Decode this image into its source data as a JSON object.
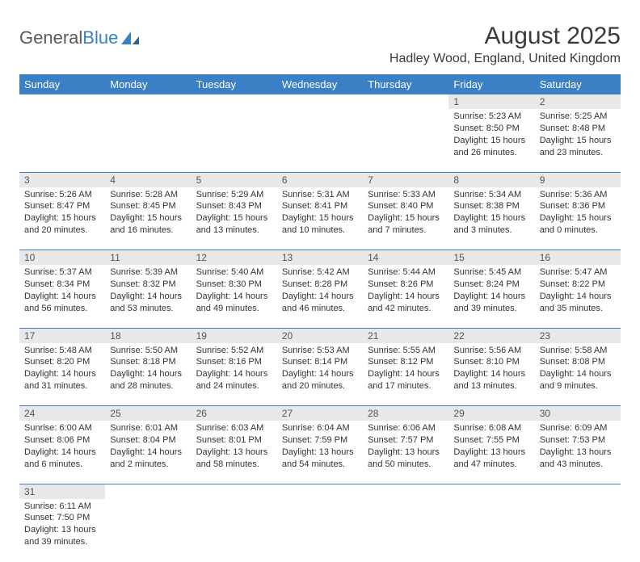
{
  "logo": {
    "text1": "General",
    "text2": "Blue"
  },
  "title": "August 2025",
  "location": "Hadley Wood, England, United Kingdom",
  "colors": {
    "header_bg": "#3b7fc4",
    "header_fg": "#ffffff",
    "daynum_bg": "#e8e8e8",
    "border": "#3b7fc4"
  },
  "weekdays": [
    "Sunday",
    "Monday",
    "Tuesday",
    "Wednesday",
    "Thursday",
    "Friday",
    "Saturday"
  ],
  "weeks": [
    [
      null,
      null,
      null,
      null,
      null,
      {
        "n": "1",
        "sr": "Sunrise: 5:23 AM",
        "ss": "Sunset: 8:50 PM",
        "dl": "Daylight: 15 hours and 26 minutes."
      },
      {
        "n": "2",
        "sr": "Sunrise: 5:25 AM",
        "ss": "Sunset: 8:48 PM",
        "dl": "Daylight: 15 hours and 23 minutes."
      }
    ],
    [
      {
        "n": "3",
        "sr": "Sunrise: 5:26 AM",
        "ss": "Sunset: 8:47 PM",
        "dl": "Daylight: 15 hours and 20 minutes."
      },
      {
        "n": "4",
        "sr": "Sunrise: 5:28 AM",
        "ss": "Sunset: 8:45 PM",
        "dl": "Daylight: 15 hours and 16 minutes."
      },
      {
        "n": "5",
        "sr": "Sunrise: 5:29 AM",
        "ss": "Sunset: 8:43 PM",
        "dl": "Daylight: 15 hours and 13 minutes."
      },
      {
        "n": "6",
        "sr": "Sunrise: 5:31 AM",
        "ss": "Sunset: 8:41 PM",
        "dl": "Daylight: 15 hours and 10 minutes."
      },
      {
        "n": "7",
        "sr": "Sunrise: 5:33 AM",
        "ss": "Sunset: 8:40 PM",
        "dl": "Daylight: 15 hours and 7 minutes."
      },
      {
        "n": "8",
        "sr": "Sunrise: 5:34 AM",
        "ss": "Sunset: 8:38 PM",
        "dl": "Daylight: 15 hours and 3 minutes."
      },
      {
        "n": "9",
        "sr": "Sunrise: 5:36 AM",
        "ss": "Sunset: 8:36 PM",
        "dl": "Daylight: 15 hours and 0 minutes."
      }
    ],
    [
      {
        "n": "10",
        "sr": "Sunrise: 5:37 AM",
        "ss": "Sunset: 8:34 PM",
        "dl": "Daylight: 14 hours and 56 minutes."
      },
      {
        "n": "11",
        "sr": "Sunrise: 5:39 AM",
        "ss": "Sunset: 8:32 PM",
        "dl": "Daylight: 14 hours and 53 minutes."
      },
      {
        "n": "12",
        "sr": "Sunrise: 5:40 AM",
        "ss": "Sunset: 8:30 PM",
        "dl": "Daylight: 14 hours and 49 minutes."
      },
      {
        "n": "13",
        "sr": "Sunrise: 5:42 AM",
        "ss": "Sunset: 8:28 PM",
        "dl": "Daylight: 14 hours and 46 minutes."
      },
      {
        "n": "14",
        "sr": "Sunrise: 5:44 AM",
        "ss": "Sunset: 8:26 PM",
        "dl": "Daylight: 14 hours and 42 minutes."
      },
      {
        "n": "15",
        "sr": "Sunrise: 5:45 AM",
        "ss": "Sunset: 8:24 PM",
        "dl": "Daylight: 14 hours and 39 minutes."
      },
      {
        "n": "16",
        "sr": "Sunrise: 5:47 AM",
        "ss": "Sunset: 8:22 PM",
        "dl": "Daylight: 14 hours and 35 minutes."
      }
    ],
    [
      {
        "n": "17",
        "sr": "Sunrise: 5:48 AM",
        "ss": "Sunset: 8:20 PM",
        "dl": "Daylight: 14 hours and 31 minutes."
      },
      {
        "n": "18",
        "sr": "Sunrise: 5:50 AM",
        "ss": "Sunset: 8:18 PM",
        "dl": "Daylight: 14 hours and 28 minutes."
      },
      {
        "n": "19",
        "sr": "Sunrise: 5:52 AM",
        "ss": "Sunset: 8:16 PM",
        "dl": "Daylight: 14 hours and 24 minutes."
      },
      {
        "n": "20",
        "sr": "Sunrise: 5:53 AM",
        "ss": "Sunset: 8:14 PM",
        "dl": "Daylight: 14 hours and 20 minutes."
      },
      {
        "n": "21",
        "sr": "Sunrise: 5:55 AM",
        "ss": "Sunset: 8:12 PM",
        "dl": "Daylight: 14 hours and 17 minutes."
      },
      {
        "n": "22",
        "sr": "Sunrise: 5:56 AM",
        "ss": "Sunset: 8:10 PM",
        "dl": "Daylight: 14 hours and 13 minutes."
      },
      {
        "n": "23",
        "sr": "Sunrise: 5:58 AM",
        "ss": "Sunset: 8:08 PM",
        "dl": "Daylight: 14 hours and 9 minutes."
      }
    ],
    [
      {
        "n": "24",
        "sr": "Sunrise: 6:00 AM",
        "ss": "Sunset: 8:06 PM",
        "dl": "Daylight: 14 hours and 6 minutes."
      },
      {
        "n": "25",
        "sr": "Sunrise: 6:01 AM",
        "ss": "Sunset: 8:04 PM",
        "dl": "Daylight: 14 hours and 2 minutes."
      },
      {
        "n": "26",
        "sr": "Sunrise: 6:03 AM",
        "ss": "Sunset: 8:01 PM",
        "dl": "Daylight: 13 hours and 58 minutes."
      },
      {
        "n": "27",
        "sr": "Sunrise: 6:04 AM",
        "ss": "Sunset: 7:59 PM",
        "dl": "Daylight: 13 hours and 54 minutes."
      },
      {
        "n": "28",
        "sr": "Sunrise: 6:06 AM",
        "ss": "Sunset: 7:57 PM",
        "dl": "Daylight: 13 hours and 50 minutes."
      },
      {
        "n": "29",
        "sr": "Sunrise: 6:08 AM",
        "ss": "Sunset: 7:55 PM",
        "dl": "Daylight: 13 hours and 47 minutes."
      },
      {
        "n": "30",
        "sr": "Sunrise: 6:09 AM",
        "ss": "Sunset: 7:53 PM",
        "dl": "Daylight: 13 hours and 43 minutes."
      }
    ],
    [
      {
        "n": "31",
        "sr": "Sunrise: 6:11 AM",
        "ss": "Sunset: 7:50 PM",
        "dl": "Daylight: 13 hours and 39 minutes."
      },
      null,
      null,
      null,
      null,
      null,
      null
    ]
  ]
}
